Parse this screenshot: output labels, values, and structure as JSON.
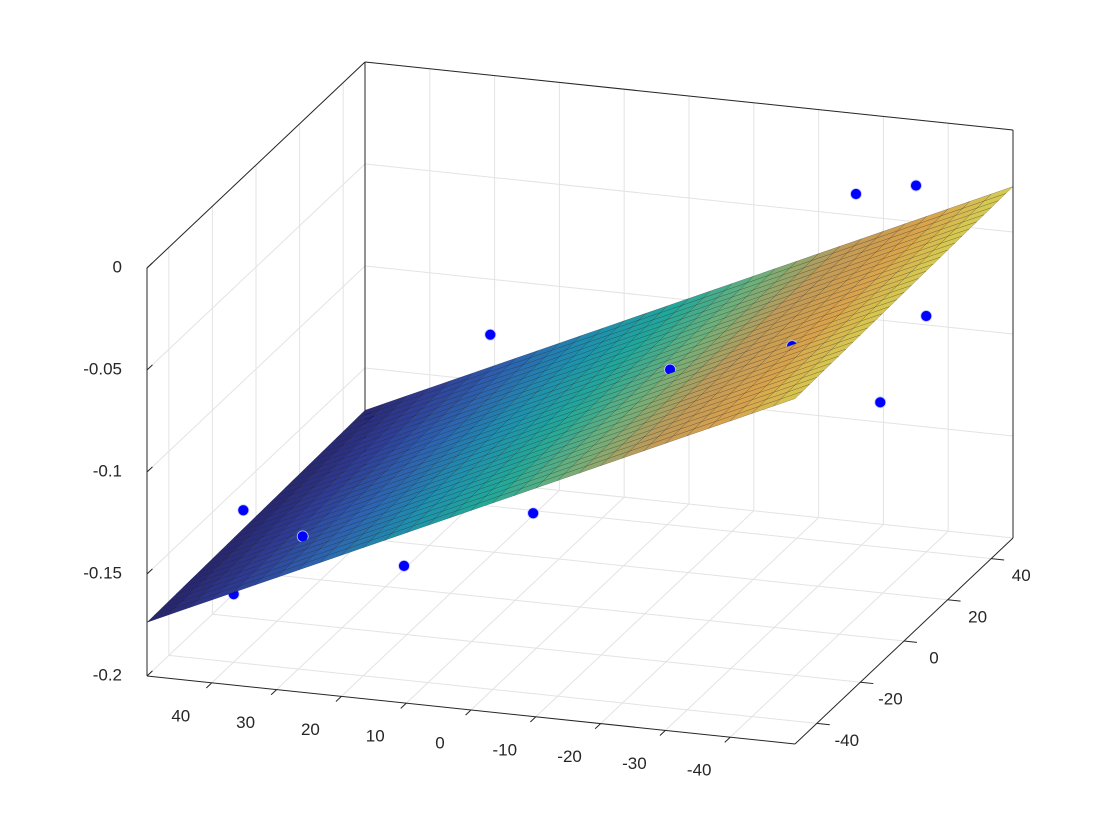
{
  "chart_data": {
    "type": "surface3d",
    "xlim": [
      -50,
      50
    ],
    "ylim": [
      -50,
      50
    ],
    "zlim": [
      -0.2,
      0
    ],
    "xticks": [
      -40,
      -30,
      -20,
      -10,
      0,
      10,
      20,
      30,
      40
    ],
    "yticks": [
      -40,
      -20,
      0,
      20,
      40
    ],
    "zticks": [
      -0.2,
      -0.15,
      -0.1,
      -0.05,
      0
    ],
    "grid": true,
    "colormap": "parula",
    "surface": {
      "x": [
        -50,
        -30,
        -10,
        10,
        30,
        50
      ],
      "y": [
        -50,
        -30,
        -10,
        10,
        30,
        50
      ],
      "z": [
        [
          -0.0307,
          -0.0593,
          -0.0879,
          -0.1165,
          -0.1451,
          -0.1737
        ],
        [
          -0.0301,
          -0.0587,
          -0.0873,
          -0.1159,
          -0.1445,
          -0.1731
        ],
        [
          -0.0295,
          -0.0581,
          -0.0867,
          -0.1153,
          -0.1439,
          -0.1725
        ],
        [
          -0.0289,
          -0.0575,
          -0.0861,
          -0.1147,
          -0.1433,
          -0.1719
        ],
        [
          -0.0283,
          -0.0569,
          -0.0855,
          -0.1141,
          -0.1427,
          -0.1713
        ],
        [
          -0.0277,
          -0.0563,
          -0.0849,
          -0.1135,
          -0.1421,
          -0.1707
        ]
      ]
    },
    "scatter": {
      "color": "#0000ff",
      "x": [
        38.5,
        32.7,
        49.4,
        13.7,
        27.3,
        0.5,
        -13.9,
        -36.1,
        -32.5,
        -38.4,
        -46.7,
        -49.7,
        38.3
      ],
      "y": [
        -40,
        -30,
        50,
        -40,
        40,
        -20,
        0,
        -10,
        30,
        40,
        20,
        -10,
        -45
      ],
      "z": [
        -0.125,
        -0.146,
        -0.174,
        -0.144,
        -0.116,
        -0.134,
        -0.079,
        -0.05,
        -0.017,
        -0.021,
        -0.062,
        -0.073,
        -0.161
      ]
    }
  }
}
